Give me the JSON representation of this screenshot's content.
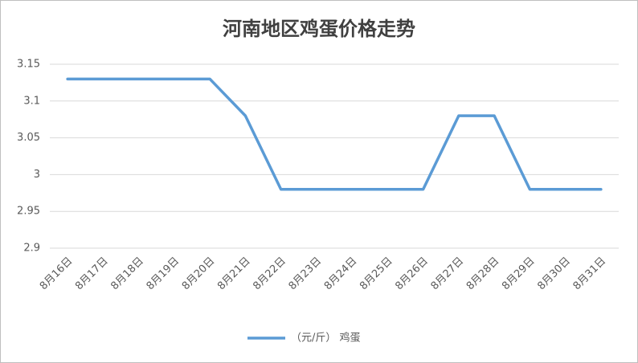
{
  "chart_data": {
    "type": "line",
    "title": "河南地区鸡蛋价格走势",
    "categories": [
      "8月16日",
      "8月17日",
      "8月18日",
      "8月19日",
      "8月20日",
      "8月21日",
      "8月22日",
      "8月23日",
      "8月24日",
      "8月25日",
      "8月26日",
      "8月27日",
      "8月28日",
      "8月29日",
      "8月30日",
      "8月31日"
    ],
    "series": [
      {
        "name": "（元/斤） 鸡蛋",
        "color": "#5b9bd5",
        "values": [
          3.13,
          3.13,
          3.13,
          3.13,
          3.13,
          3.08,
          2.98,
          2.98,
          2.98,
          2.98,
          2.98,
          3.08,
          3.08,
          2.98,
          2.98,
          2.98
        ]
      }
    ],
    "ylim": [
      2.9,
      3.15
    ],
    "yticks": [
      2.9,
      2.95,
      3,
      3.05,
      3.1,
      3.15
    ],
    "grid": true,
    "legend": "bottom"
  }
}
